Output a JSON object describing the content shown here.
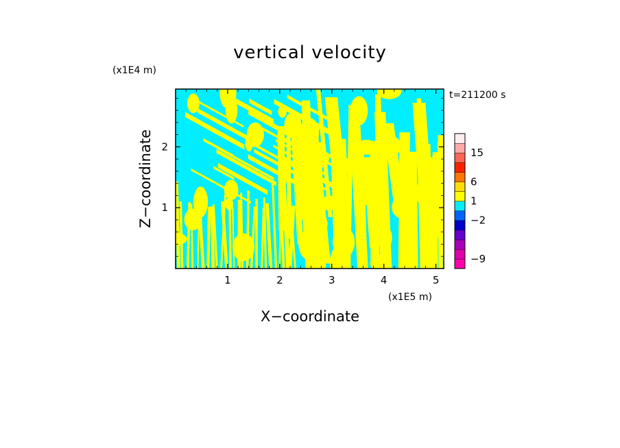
{
  "chart_data": {
    "type": "heatmap",
    "title": "vertical velocity",
    "xlabel": "X−coordinate",
    "ylabel": "Z−coordinate",
    "x_multiplier": "(x1E5 m)",
    "y_multiplier": "(x1E4 m)",
    "time_label": "t=211200 s",
    "xlim": [
      0,
      5.15
    ],
    "ylim": [
      0,
      2.95
    ],
    "x_ticks": [
      1,
      2,
      3,
      4,
      5
    ],
    "y_ticks": [
      1,
      2
    ],
    "x_tick_labels": [
      "1",
      "2",
      "3",
      "4",
      "5"
    ],
    "y_tick_labels": [
      "1",
      "2"
    ],
    "field_colors": {
      "positive": "#ffff00",
      "negative": "#00eeff"
    },
    "colorbar": {
      "colors": [
        "#ff00aa",
        "#dd00aa",
        "#aa00bb",
        "#6600cc",
        "#0000cc",
        "#0066ff",
        "#00eeff",
        "#ffff00",
        "#ffdd00",
        "#ff7700",
        "#ff2200",
        "#ff6655",
        "#ffaaaa",
        "#ffeeee"
      ],
      "tick_labels": [
        "−9",
        "−2",
        "1",
        "6",
        "15"
      ],
      "tick_levels": [
        1,
        5,
        7,
        9,
        12
      ]
    }
  }
}
